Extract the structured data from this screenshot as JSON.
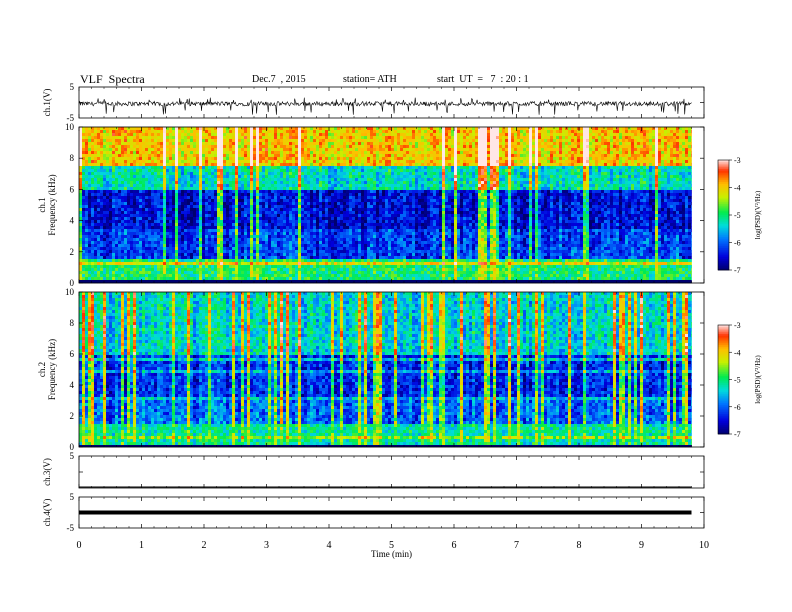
{
  "header": {
    "title": "VLF  Spectra",
    "date": "Dec.7  , 2015",
    "station": "station= ATH",
    "start": "start  UT  =   7  : 20 : 1"
  },
  "chart_data": [
    {
      "type": "line",
      "panel": "ch1-waveform",
      "ylabel": "ch.1(V)",
      "ylim": [
        -5,
        5
      ],
      "y_ticks": [
        "5",
        "-5"
      ],
      "series": [
        {
          "x_range_min": [
            0,
            9.8
          ],
          "y_mean": 0,
          "y_typical_range": [
            -1.5,
            0.5
          ],
          "y_spike_min": -4
        }
      ]
    },
    {
      "type": "heatmap",
      "panel": "ch1-spectrogram",
      "ylabel": "ch.1\nFrequency  (kHz)",
      "xlim_min": [
        0,
        9.8
      ],
      "ylim_khz": [
        0,
        10
      ],
      "y_ticks": [
        "0",
        "2",
        "4",
        "6",
        "8",
        "10"
      ],
      "colorbar": {
        "label": "log(PSD)(V²/Hz)",
        "range": [
          -7,
          -3
        ],
        "ticks": [
          "-3",
          "-4",
          "-5",
          "-6",
          "-7"
        ]
      },
      "psd_profile_by_freq_khz": [
        {
          "band": [
            0,
            1.5
          ],
          "log_psd": -5.0
        },
        {
          "band": [
            1.5,
            3.5
          ],
          "log_psd": -6.2
        },
        {
          "band": [
            3.5,
            6
          ],
          "log_psd": -6.5
        },
        {
          "band": [
            6,
            7.5
          ],
          "log_psd": -5.3
        },
        {
          "band": [
            7.5,
            10
          ],
          "log_psd": -4.0
        }
      ]
    },
    {
      "type": "heatmap",
      "panel": "ch2-spectrogram",
      "ylabel": "ch.2\nFrequency  (kHz)",
      "xlim_min": [
        0,
        9.8
      ],
      "ylim_khz": [
        0,
        10
      ],
      "y_ticks": [
        "0",
        "2",
        "4",
        "6",
        "8",
        "10"
      ],
      "colorbar": {
        "label": "log(PSD)(V²/Hz)",
        "range": [
          -7,
          -3
        ],
        "ticks": [
          "-3",
          "-4",
          "-5",
          "-6",
          "-7"
        ]
      },
      "psd_profile_by_freq_khz": [
        {
          "band": [
            0,
            1.5
          ],
          "log_psd": -5.2
        },
        {
          "band": [
            1.5,
            3
          ],
          "log_psd": -6.0
        },
        {
          "band": [
            3,
            6
          ],
          "log_psd": -6.3
        },
        {
          "band": [
            6,
            10
          ],
          "log_psd": -5.4
        }
      ]
    },
    {
      "type": "line",
      "panel": "ch3-waveform",
      "ylabel": "ch.3(V)",
      "ylim": [
        -5,
        5
      ],
      "y_ticks": [
        "5"
      ],
      "series": [
        {
          "x_range_min": [
            0,
            9.8
          ],
          "y_mean": -5
        }
      ]
    },
    {
      "type": "line",
      "panel": "ch4-waveform",
      "ylabel": "ch.4(V)",
      "xlabel": "Time  (min)",
      "xlim": [
        0,
        10
      ],
      "x_ticks": [
        "0",
        "1",
        "2",
        "3",
        "4",
        "5",
        "6",
        "7",
        "8",
        "9",
        "10"
      ],
      "ylim": [
        -5,
        5
      ],
      "y_ticks": [
        "5",
        "-5"
      ],
      "series": [
        {
          "x_range_min": [
            0,
            9.8
          ],
          "y_mean": 0
        }
      ]
    }
  ]
}
